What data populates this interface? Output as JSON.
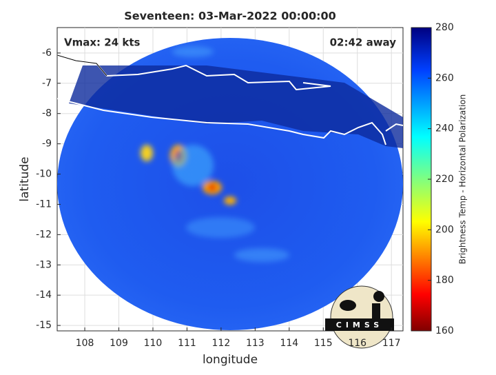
{
  "chart_data": {
    "type": "map",
    "title": "Seventeen: 03-Mar-2022 00:00:00",
    "annotations": [
      "Vmax: 24 kts",
      "02:42 away"
    ],
    "xlabel": "longitude",
    "ylabel": "latitude",
    "xlim": [
      107.19,
      117.34
    ],
    "ylim": [
      -15.18,
      -5.16
    ],
    "xticks": [
      108,
      109,
      110,
      111,
      112,
      113,
      114,
      115,
      116,
      117
    ],
    "yticks": [
      -6,
      -7,
      -8,
      -9,
      -10,
      -11,
      -12,
      -13,
      -14,
      -15
    ],
    "grid": true,
    "colorbar": {
      "label": "Brightness Temp - Horizontal Polarization",
      "lim": [
        160,
        280
      ],
      "ticks": [
        160,
        180,
        200,
        220,
        240,
        260,
        280
      ]
    },
    "logo": "CIMSS"
  }
}
